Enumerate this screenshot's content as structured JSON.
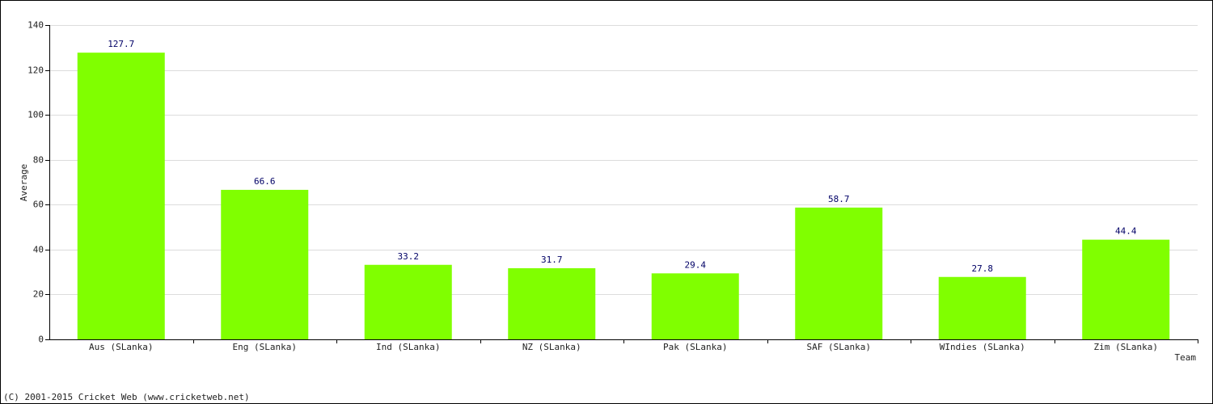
{
  "chart_data": {
    "type": "bar",
    "categories": [
      "Aus (SLanka)",
      "Eng (SLanka)",
      "Ind (SLanka)",
      "NZ (SLanka)",
      "Pak (SLanka)",
      "SAF (SLanka)",
      "WIndies (SLanka)",
      "Zim (SLanka)"
    ],
    "values": [
      127.7,
      66.6,
      33.2,
      31.7,
      29.4,
      58.7,
      27.8,
      44.4
    ],
    "color": "#80ff00",
    "value_label_color": "#000066",
    "ylim": [
      0,
      140
    ],
    "yticks": [
      0,
      20,
      40,
      60,
      80,
      100,
      120,
      140
    ],
    "grid": true,
    "y_label": "Average",
    "x_label": "Team",
    "footer": "(C) 2001-2015 Cricket Web (www.cricketweb.net)"
  }
}
